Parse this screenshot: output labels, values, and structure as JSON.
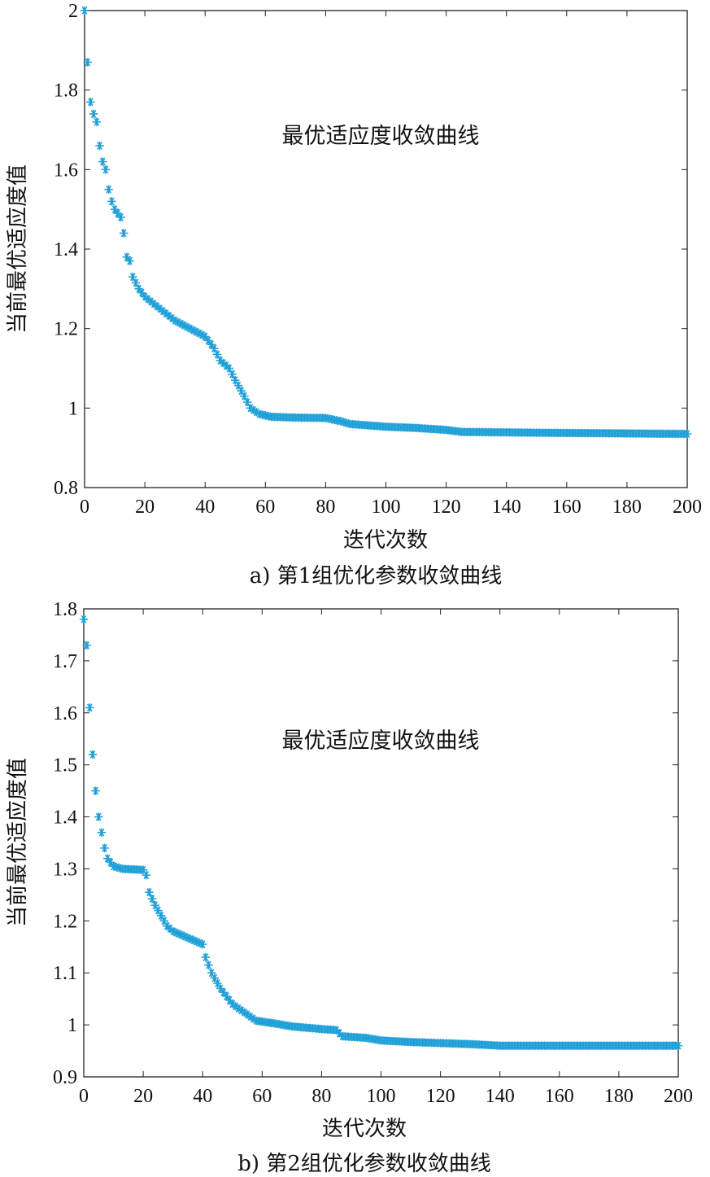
{
  "figure": {
    "captions": [
      "a) 第1组优化参数收敛曲线",
      "b) 第2组优化参数收敛曲线"
    ]
  },
  "chart_data": [
    {
      "type": "scatter",
      "panel": "a",
      "marker": "asterisk",
      "color": "#1fa0d8",
      "annotation": "最优适应度收敛曲线",
      "xlabel": "迭代次数",
      "ylabel": "当前最优适应度值",
      "xlim": [
        0,
        200
      ],
      "ylim": [
        0.8,
        2
      ],
      "xticks": [
        0,
        20,
        40,
        60,
        80,
        100,
        120,
        140,
        160,
        180,
        200
      ],
      "yticks": [
        0.8,
        1,
        1.2,
        1.4,
        1.6,
        1.8,
        2
      ],
      "ytick_labels": [
        "0.8",
        "1",
        "1.2",
        "1.4",
        "1.6",
        "1.8",
        "2"
      ],
      "curve_points": [
        [
          0,
          2.0
        ],
        [
          1,
          1.87
        ],
        [
          2,
          1.77
        ],
        [
          3,
          1.74
        ],
        [
          4,
          1.72
        ],
        [
          5,
          1.66
        ],
        [
          6,
          1.62
        ],
        [
          7,
          1.6
        ],
        [
          8,
          1.55
        ],
        [
          9,
          1.52
        ],
        [
          10,
          1.5
        ],
        [
          11,
          1.49
        ],
        [
          12,
          1.48
        ],
        [
          13,
          1.44
        ],
        [
          14,
          1.38
        ],
        [
          15,
          1.37
        ],
        [
          16,
          1.33
        ],
        [
          18,
          1.3
        ],
        [
          20,
          1.28
        ],
        [
          25,
          1.25
        ],
        [
          30,
          1.22
        ],
        [
          35,
          1.2
        ],
        [
          40,
          1.18
        ],
        [
          43,
          1.15
        ],
        [
          45,
          1.12
        ],
        [
          48,
          1.1
        ],
        [
          50,
          1.07
        ],
        [
          53,
          1.03
        ],
        [
          55,
          1.0
        ],
        [
          58,
          0.985
        ],
        [
          62,
          0.978
        ],
        [
          70,
          0.976
        ],
        [
          80,
          0.975
        ],
        [
          85,
          0.967
        ],
        [
          88,
          0.96
        ],
        [
          100,
          0.953
        ],
        [
          110,
          0.95
        ],
        [
          120,
          0.945
        ],
        [
          125,
          0.94
        ],
        [
          150,
          0.938
        ],
        [
          200,
          0.935
        ]
      ],
      "x_end": 200
    },
    {
      "type": "scatter",
      "panel": "b",
      "marker": "asterisk",
      "color": "#1fa0d8",
      "annotation": "最优适应度收敛曲线",
      "xlabel": "迭代次数",
      "ylabel": "当前最优适应度值",
      "xlim": [
        0,
        200
      ],
      "ylim": [
        0.9,
        1.8
      ],
      "xticks": [
        0,
        20,
        40,
        60,
        80,
        100,
        120,
        140,
        160,
        180,
        200
      ],
      "yticks": [
        0.9,
        1,
        1.1,
        1.2,
        1.3,
        1.4,
        1.5,
        1.6,
        1.7,
        1.8
      ],
      "ytick_labels": [
        "0.9",
        "1",
        "1.1",
        "1.2",
        "1.3",
        "1.4",
        "1.5",
        "1.6",
        "1.7",
        "1.8"
      ],
      "curve_points": [
        [
          0,
          1.78
        ],
        [
          1,
          1.73
        ],
        [
          2,
          1.61
        ],
        [
          3,
          1.52
        ],
        [
          4,
          1.45
        ],
        [
          5,
          1.4
        ],
        [
          6,
          1.37
        ],
        [
          7,
          1.34
        ],
        [
          8,
          1.32
        ],
        [
          10,
          1.305
        ],
        [
          13,
          1.3
        ],
        [
          20,
          1.298
        ],
        [
          21,
          1.288
        ],
        [
          22,
          1.255
        ],
        [
          24,
          1.23
        ],
        [
          26,
          1.21
        ],
        [
          28,
          1.19
        ],
        [
          30,
          1.18
        ],
        [
          34,
          1.17
        ],
        [
          38,
          1.16
        ],
        [
          40,
          1.155
        ],
        [
          41,
          1.13
        ],
        [
          43,
          1.1
        ],
        [
          46,
          1.07
        ],
        [
          50,
          1.04
        ],
        [
          55,
          1.02
        ],
        [
          58,
          1.008
        ],
        [
          65,
          1.002
        ],
        [
          70,
          0.997
        ],
        [
          80,
          0.992
        ],
        [
          85,
          0.99
        ],
        [
          87,
          0.978
        ],
        [
          95,
          0.975
        ],
        [
          100,
          0.97
        ],
        [
          110,
          0.967
        ],
        [
          130,
          0.963
        ],
        [
          140,
          0.96
        ],
        [
          200,
          0.96
        ]
      ],
      "x_end": 200
    }
  ]
}
